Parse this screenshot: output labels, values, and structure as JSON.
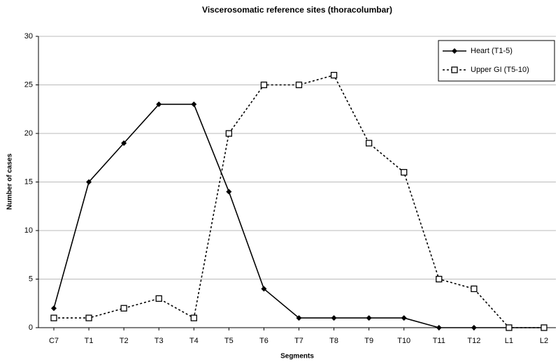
{
  "chart_data": {
    "type": "line",
    "title": "Viscerosomatic reference sites (thoracolumbar)",
    "xlabel": "Segments",
    "ylabel": "Number of cases",
    "categories": [
      "C7",
      "T1",
      "T2",
      "T3",
      "T4",
      "T5",
      "T6",
      "T7",
      "T8",
      "T9",
      "T10",
      "T11",
      "T12",
      "L1",
      "L2"
    ],
    "series": [
      {
        "name": "Heart (T1-5)",
        "color": "#000000",
        "line_style": "solid",
        "marker": "diamond",
        "values": [
          2,
          15,
          19,
          23,
          23,
          14,
          4,
          1,
          1,
          1,
          1,
          0,
          0,
          0,
          0
        ]
      },
      {
        "name": "Upper GI (T5-10)",
        "color": "#000000",
        "line_style": "dotted",
        "marker": "open-square",
        "values": [
          1,
          1,
          2,
          3,
          1,
          20,
          25,
          25,
          26,
          19,
          16,
          5,
          4,
          0,
          0
        ]
      }
    ],
    "ylim": [
      0,
      30
    ],
    "yticks": [
      0,
      5,
      10,
      15,
      20,
      25,
      30
    ],
    "grid": true,
    "legend": "upper right"
  }
}
